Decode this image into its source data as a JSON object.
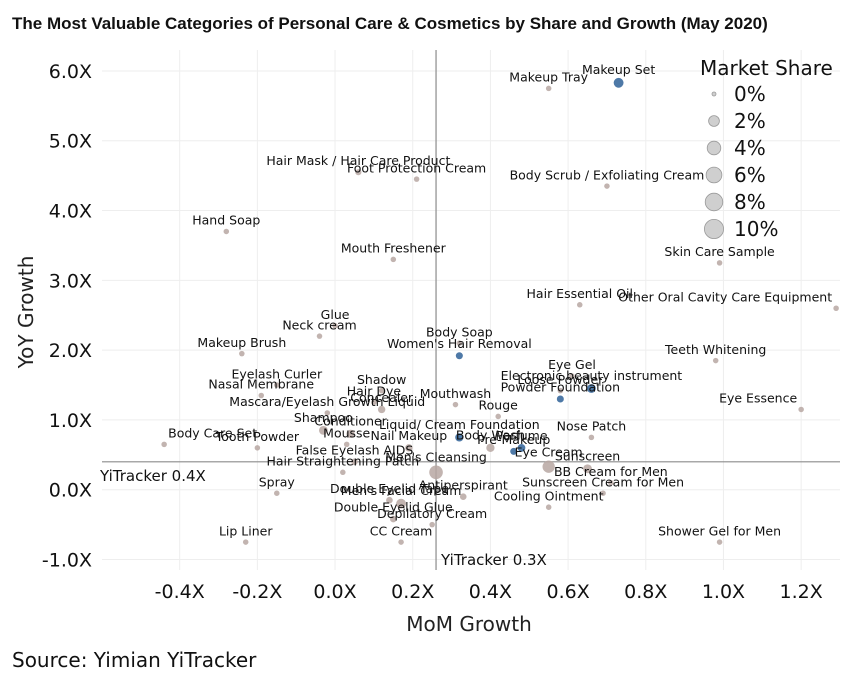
{
  "chart_data": {
    "type": "scatter",
    "title": "The Most Valuable Categories of Personal Care & Cosmetics by Share and Growth  (May 2020)",
    "xlabel": "MoM Growth",
    "ylabel": "YoY Growth",
    "xlim": [
      -0.6,
      1.3
    ],
    "ylim": [
      -1.15,
      6.3
    ],
    "x_ticks": [
      -0.4,
      -0.2,
      0.0,
      0.2,
      0.4,
      0.6,
      0.8,
      1.0,
      1.2
    ],
    "x_tick_labels": [
      "-0.4X",
      "-0.2X",
      "0.0X",
      "0.2X",
      "0.4X",
      "0.6X",
      "0.8X",
      "1.0X",
      "1.2X"
    ],
    "y_ticks": [
      -1,
      0,
      1,
      2,
      3,
      4,
      5,
      6
    ],
    "y_tick_labels": [
      "-1.0X",
      "0.0X",
      "1.0X",
      "2.0X",
      "3.0X",
      "4.0X",
      "5.0X",
      "6.0X"
    ],
    "grid": true,
    "reference_lines": [
      {
        "axis": "y",
        "value": 0.4,
        "label": "YiTracker 0.4X"
      },
      {
        "axis": "x",
        "value": 0.26,
        "label": "YiTracker 0.3X"
      }
    ],
    "legend": {
      "title": "Market Share",
      "position": "top-right",
      "entries": [
        "0%",
        "2%",
        "4%",
        "6%",
        "8%",
        "10%"
      ],
      "values": [
        0,
        2,
        4,
        6,
        8,
        10
      ]
    },
    "colors": {
      "highlight": "#4e79a7",
      "normal": "#b7a7a2",
      "legend": "#cfcfcf",
      "grid": "#eeeeee",
      "ref_line": "#8c8c8c"
    },
    "points": [
      {
        "name": "Makeup Set",
        "x": 0.73,
        "y": 5.83,
        "share": 1.5,
        "hl": true
      },
      {
        "name": "Makeup Tray",
        "x": 0.55,
        "y": 5.75,
        "share": 0.1,
        "hl": false
      },
      {
        "name": "Hair Mask / Hair Care Product",
        "x": 0.06,
        "y": 4.55,
        "share": 0.2,
        "hl": false
      },
      {
        "name": "Foot Protection Cream",
        "x": 0.21,
        "y": 4.45,
        "share": 0.1,
        "hl": false
      },
      {
        "name": "Body Scrub / Exfoliating Cream",
        "x": 0.7,
        "y": 4.35,
        "share": 0.1,
        "hl": false
      },
      {
        "name": "Hand Soap",
        "x": -0.28,
        "y": 3.7,
        "share": 0.1,
        "hl": false
      },
      {
        "name": "Mouth Freshener",
        "x": 0.15,
        "y": 3.3,
        "share": 0.1,
        "hl": false
      },
      {
        "name": "Skin Care Sample",
        "x": 0.99,
        "y": 3.25,
        "share": 0.1,
        "hl": false
      },
      {
        "name": "Hair Essential Oil",
        "x": 0.63,
        "y": 2.65,
        "share": 0.1,
        "hl": false
      },
      {
        "name": "Other Oral Cavity Care Equipment",
        "x": 1.29,
        "y": 2.6,
        "share": 0.1,
        "hl": false
      },
      {
        "name": "Glue",
        "x": 0.0,
        "y": 2.35,
        "share": 0.1,
        "hl": false
      },
      {
        "name": "Neck cream",
        "x": -0.04,
        "y": 2.2,
        "share": 0.1,
        "hl": false
      },
      {
        "name": "Body Soap",
        "x": 0.32,
        "y": 2.1,
        "share": 0.1,
        "hl": false
      },
      {
        "name": "Makeup Brush",
        "x": -0.24,
        "y": 1.95,
        "share": 0.1,
        "hl": false
      },
      {
        "name": "Women's Hair Removal",
        "x": 0.32,
        "y": 1.92,
        "share": 0.4,
        "hl": true
      },
      {
        "name": "Teeth Whitening",
        "x": 0.98,
        "y": 1.85,
        "share": 0.1,
        "hl": false
      },
      {
        "name": "Eye Gel",
        "x": 0.61,
        "y": 1.63,
        "share": 0.1,
        "hl": false
      },
      {
        "name": "Eyelash Curler",
        "x": -0.15,
        "y": 1.5,
        "share": 0.1,
        "hl": false
      },
      {
        "name": "Shadow",
        "x": 0.12,
        "y": 1.42,
        "share": 0.1,
        "hl": false
      },
      {
        "name": "Electronic beauty instrument",
        "x": 0.66,
        "y": 1.45,
        "share": 1.0,
        "hl": true
      },
      {
        "name": "Loose Powder",
        "x": 0.58,
        "y": 1.42,
        "share": 0.1,
        "hl": false
      },
      {
        "name": "Nasal Membrane",
        "x": -0.19,
        "y": 1.35,
        "share": 0.1,
        "hl": false
      },
      {
        "name": "Hair Dye",
        "x": 0.1,
        "y": 1.25,
        "share": 0.1,
        "hl": false
      },
      {
        "name": "Mouthwash",
        "x": 0.31,
        "y": 1.22,
        "share": 0.1,
        "hl": false
      },
      {
        "name": "Powder Foundation",
        "x": 0.58,
        "y": 1.3,
        "share": 0.4,
        "hl": true
      },
      {
        "name": "Mascara/Eyelash Growth Liquid",
        "x": -0.02,
        "y": 1.1,
        "share": 0.1,
        "hl": false
      },
      {
        "name": "Concealer",
        "x": 0.12,
        "y": 1.15,
        "share": 0.5,
        "hl": false
      },
      {
        "name": "Rouge",
        "x": 0.42,
        "y": 1.05,
        "share": 0.1,
        "hl": false
      },
      {
        "name": "Eye Essence",
        "x": 1.2,
        "y": 1.15,
        "share": 0.1,
        "hl": false
      },
      {
        "name": "Shampoo",
        "x": -0.03,
        "y": 0.85,
        "share": 1.0,
        "hl": false
      },
      {
        "name": "Conditioner",
        "x": 0.04,
        "y": 0.8,
        "share": 0.8,
        "hl": false
      },
      {
        "name": "Liquid/ Cream Foundation",
        "x": 0.32,
        "y": 0.75,
        "share": 0.8,
        "hl": true
      },
      {
        "name": "Nose Patch",
        "x": 0.66,
        "y": 0.75,
        "share": 0.1,
        "hl": false
      },
      {
        "name": "Body Care Set",
        "x": -0.44,
        "y": 0.65,
        "share": 0.1,
        "hl": false
      },
      {
        "name": "Tooth Powder",
        "x": -0.2,
        "y": 0.6,
        "share": 0.1,
        "hl": false
      },
      {
        "name": "Mousse",
        "x": 0.03,
        "y": 0.65,
        "share": 0.1,
        "hl": false
      },
      {
        "name": "Nail Makeup",
        "x": 0.19,
        "y": 0.6,
        "share": 0.5,
        "hl": false
      },
      {
        "name": "Body Wash",
        "x": 0.4,
        "y": 0.6,
        "share": 0.8,
        "hl": false
      },
      {
        "name": "Perfume",
        "x": 0.48,
        "y": 0.6,
        "share": 0.6,
        "hl": true
      },
      {
        "name": "Pre-Makeup",
        "x": 0.46,
        "y": 0.55,
        "share": 0.4,
        "hl": true
      },
      {
        "name": "False Eyelash AIDS",
        "x": 0.05,
        "y": 0.4,
        "share": 0.3,
        "hl": false
      },
      {
        "name": "Eye Cream",
        "x": 0.55,
        "y": 0.33,
        "share": 3.0,
        "hl": false
      },
      {
        "name": "Hair Straightening Patch",
        "x": 0.02,
        "y": 0.25,
        "share": 0.1,
        "hl": false
      },
      {
        "name": "Sunscreen",
        "x": 0.65,
        "y": 0.3,
        "share": 1.0,
        "hl": false
      },
      {
        "name": "Men's Cleansing",
        "x": 0.26,
        "y": 0.25,
        "share": 4.0,
        "hl": false
      },
      {
        "name": "BB Cream for Men",
        "x": 0.71,
        "y": 0.1,
        "share": 0.1,
        "hl": false
      },
      {
        "name": "Spray",
        "x": -0.15,
        "y": -0.05,
        "share": 0.1,
        "hl": false
      },
      {
        "name": "Double Eyelid Tape",
        "x": 0.14,
        "y": -0.15,
        "share": 0.3,
        "hl": false
      },
      {
        "name": "Antiperspirant",
        "x": 0.33,
        "y": -0.1,
        "share": 0.3,
        "hl": false
      },
      {
        "name": "Sunscreen Cream for Men",
        "x": 0.69,
        "y": -0.05,
        "share": 0.1,
        "hl": false
      },
      {
        "name": "Cooling Ointment",
        "x": 0.55,
        "y": -0.25,
        "share": 0.1,
        "hl": false
      },
      {
        "name": "Men's Facial Cream",
        "x": 0.17,
        "y": -0.2,
        "share": 1.5,
        "hl": false
      },
      {
        "name": "Double Eyelid Glue",
        "x": 0.15,
        "y": -0.42,
        "share": 0.3,
        "hl": false
      },
      {
        "name": "Depilatory Cream",
        "x": 0.25,
        "y": -0.5,
        "share": 0.1,
        "hl": false
      },
      {
        "name": "Lip Liner",
        "x": -0.23,
        "y": -0.75,
        "share": 0.1,
        "hl": false
      },
      {
        "name": "CC Cream",
        "x": 0.17,
        "y": -0.75,
        "share": 0.1,
        "hl": false
      },
      {
        "name": "Shower Gel for Men",
        "x": 0.99,
        "y": -0.75,
        "share": 0.1,
        "hl": false
      }
    ]
  },
  "source": "Source: Yimian YiTracker"
}
